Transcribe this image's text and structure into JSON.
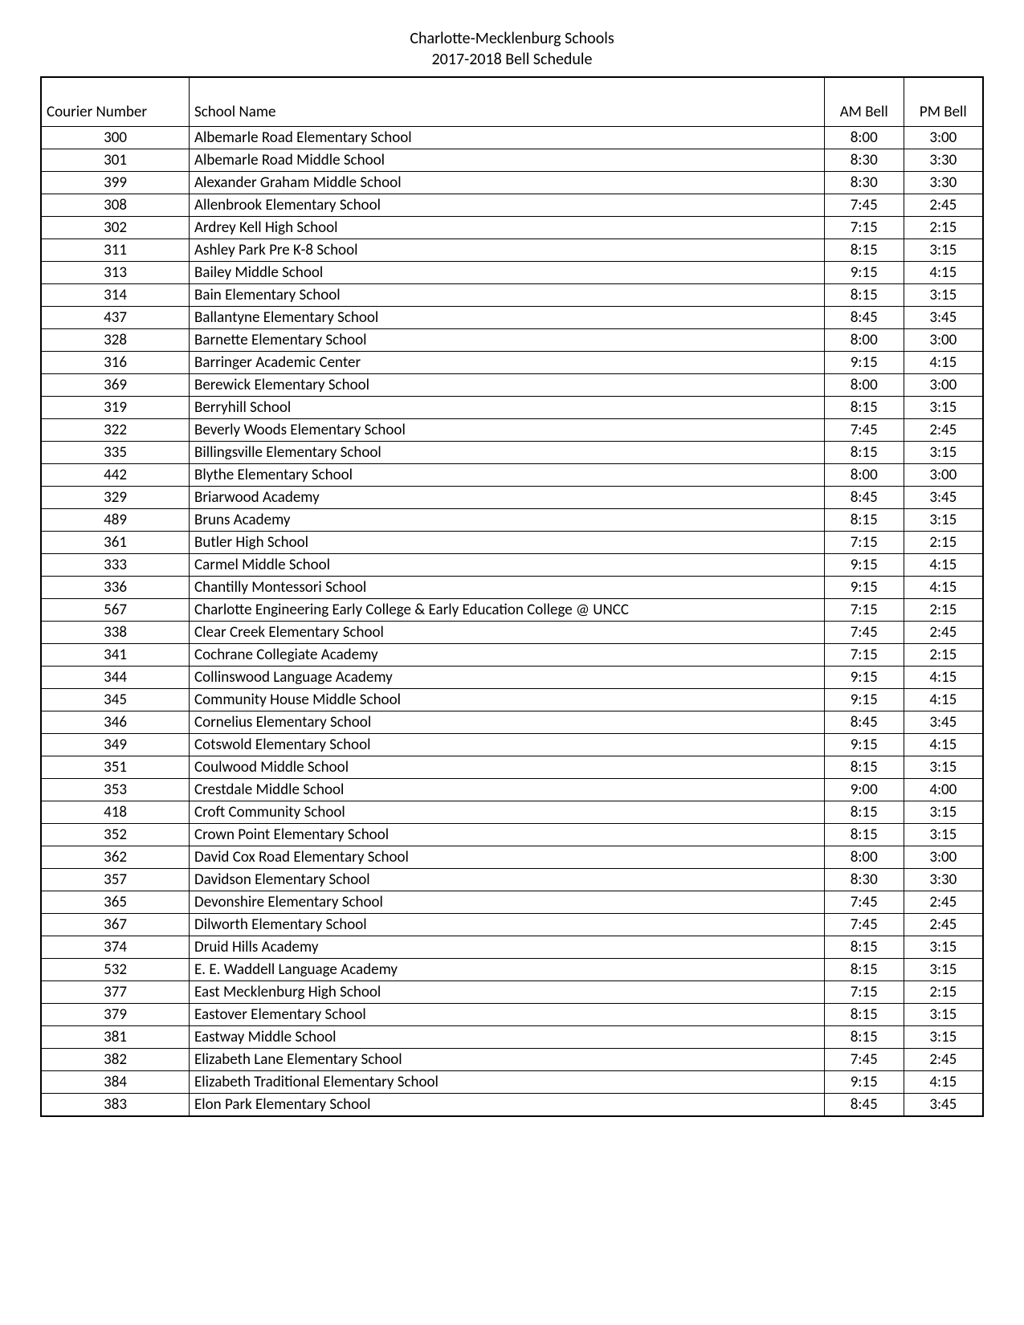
{
  "header": {
    "line1": "Charlotte-Mecklenburg Schools",
    "line2": "2017-2018 Bell Schedule"
  },
  "table": {
    "columns": {
      "courier": "Courier Number",
      "school": "School Name",
      "am": "AM Bell",
      "pm": "PM Bell"
    },
    "rows": [
      {
        "courier": "300",
        "school": "Albemarle Road Elementary School",
        "am": "8:00",
        "pm": "3:00"
      },
      {
        "courier": "301",
        "school": "Albemarle Road Middle School",
        "am": "8:30",
        "pm": "3:30"
      },
      {
        "courier": "399",
        "school": "Alexander Graham Middle School",
        "am": "8:30",
        "pm": "3:30"
      },
      {
        "courier": "308",
        "school": "Allenbrook Elementary School",
        "am": "7:45",
        "pm": "2:45"
      },
      {
        "courier": "302",
        "school": "Ardrey Kell High School",
        "am": "7:15",
        "pm": "2:15"
      },
      {
        "courier": "311",
        "school": "Ashley Park Pre K-8 School",
        "am": "8:15",
        "pm": "3:15"
      },
      {
        "courier": "313",
        "school": "Bailey Middle School",
        "am": "9:15",
        "pm": "4:15"
      },
      {
        "courier": "314",
        "school": "Bain Elementary School",
        "am": "8:15",
        "pm": "3:15"
      },
      {
        "courier": "437",
        "school": "Ballantyne Elementary School",
        "am": "8:45",
        "pm": "3:45"
      },
      {
        "courier": "328",
        "school": "Barnette Elementary School",
        "am": "8:00",
        "pm": "3:00"
      },
      {
        "courier": "316",
        "school": "Barringer Academic Center",
        "am": "9:15",
        "pm": "4:15"
      },
      {
        "courier": "369",
        "school": "Berewick Elementary School",
        "am": "8:00",
        "pm": "3:00"
      },
      {
        "courier": "319",
        "school": "Berryhill School",
        "am": "8:15",
        "pm": "3:15"
      },
      {
        "courier": "322",
        "school": "Beverly Woods Elementary School",
        "am": "7:45",
        "pm": "2:45"
      },
      {
        "courier": "335",
        "school": "Billingsville Elementary School",
        "am": "8:15",
        "pm": "3:15"
      },
      {
        "courier": "442",
        "school": "Blythe Elementary School",
        "am": "8:00",
        "pm": "3:00"
      },
      {
        "courier": "329",
        "school": "Briarwood Academy",
        "am": "8:45",
        "pm": "3:45"
      },
      {
        "courier": "489",
        "school": "Bruns Academy",
        "am": "8:15",
        "pm": "3:15"
      },
      {
        "courier": "361",
        "school": "Butler High School",
        "am": "7:15",
        "pm": "2:15"
      },
      {
        "courier": "333",
        "school": "Carmel Middle School",
        "am": "9:15",
        "pm": "4:15"
      },
      {
        "courier": "336",
        "school": "Chantilly Montessori School",
        "am": "9:15",
        "pm": "4:15"
      },
      {
        "courier": "567",
        "school": "Charlotte Engineering Early College & Early Education College @ UNCC",
        "am": "7:15",
        "pm": "2:15"
      },
      {
        "courier": "338",
        "school": "Clear Creek Elementary School",
        "am": "7:45",
        "pm": "2:45"
      },
      {
        "courier": "341",
        "school": "Cochrane Collegiate Academy",
        "am": "7:15",
        "pm": "2:15"
      },
      {
        "courier": "344",
        "school": "Collinswood Language Academy",
        "am": "9:15",
        "pm": "4:15"
      },
      {
        "courier": "345",
        "school": "Community House Middle School",
        "am": "9:15",
        "pm": "4:15"
      },
      {
        "courier": "346",
        "school": "Cornelius Elementary School",
        "am": "8:45",
        "pm": "3:45"
      },
      {
        "courier": "349",
        "school": "Cotswold Elementary School",
        "am": "9:15",
        "pm": "4:15"
      },
      {
        "courier": "351",
        "school": "Coulwood Middle School",
        "am": "8:15",
        "pm": "3:15"
      },
      {
        "courier": "353",
        "school": "Crestdale Middle School",
        "am": "9:00",
        "pm": "4:00"
      },
      {
        "courier": "418",
        "school": "Croft Community School",
        "am": "8:15",
        "pm": "3:15"
      },
      {
        "courier": "352",
        "school": "Crown Point Elementary School",
        "am": "8:15",
        "pm": "3:15"
      },
      {
        "courier": "362",
        "school": "David Cox Road Elementary School",
        "am": "8:00",
        "pm": "3:00"
      },
      {
        "courier": "357",
        "school": "Davidson Elementary School",
        "am": "8:30",
        "pm": "3:30"
      },
      {
        "courier": "365",
        "school": "Devonshire Elementary School",
        "am": "7:45",
        "pm": "2:45"
      },
      {
        "courier": "367",
        "school": "Dilworth Elementary School",
        "am": "7:45",
        "pm": "2:45"
      },
      {
        "courier": "374",
        "school": "Druid Hills Academy",
        "am": "8:15",
        "pm": "3:15"
      },
      {
        "courier": "532",
        "school": "E. E. Waddell Language Academy",
        "am": "8:15",
        "pm": "3:15"
      },
      {
        "courier": "377",
        "school": "East Mecklenburg High School",
        "am": "7:15",
        "pm": "2:15"
      },
      {
        "courier": "379",
        "school": "Eastover Elementary School",
        "am": "8:15",
        "pm": "3:15"
      },
      {
        "courier": "381",
        "school": "Eastway Middle School",
        "am": "8:15",
        "pm": "3:15"
      },
      {
        "courier": "382",
        "school": "Elizabeth Lane Elementary School",
        "am": "7:45",
        "pm": "2:45"
      },
      {
        "courier": "384",
        "school": "Elizabeth Traditional Elementary School",
        "am": "9:15",
        "pm": "4:15"
      },
      {
        "courier": "383",
        "school": "Elon Park Elementary School",
        "am": "8:45",
        "pm": "3:45"
      }
    ]
  }
}
